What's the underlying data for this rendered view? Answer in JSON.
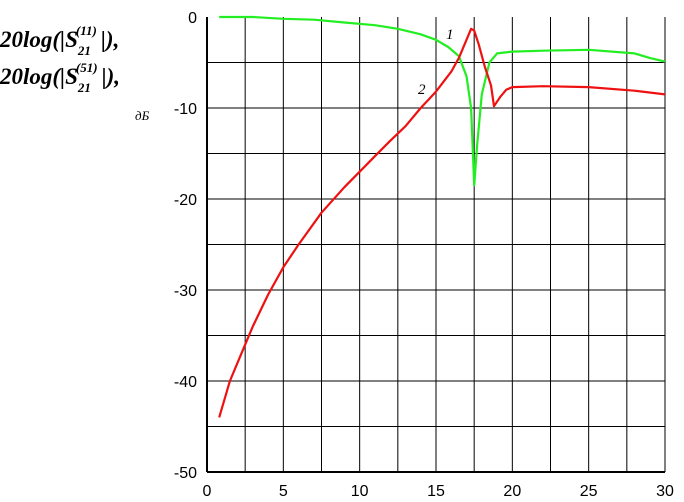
{
  "chart_data": {
    "type": "line",
    "title": "",
    "ylabel": {
      "line1_prefix": "20log(|S",
      "line1_sub": "21",
      "line1_sup": "(11)",
      "line1_suffix": "|),",
      "line2_prefix": "20log(|S",
      "line2_sub": "21",
      "line2_sup": "(51)",
      "line2_suffix": "|),",
      "unit": "дБ"
    },
    "xlabel": "",
    "xlim": [
      0,
      30
    ],
    "ylim": [
      -50,
      0
    ],
    "x_ticks": [
      0,
      5,
      10,
      15,
      20,
      25,
      30
    ],
    "y_ticks": [
      0,
      -10,
      -20,
      -30,
      -40,
      -50
    ],
    "x_grid_step": 2.5,
    "y_grid_step": 5,
    "grid": true,
    "series": [
      {
        "name": "1",
        "color": "#22ee22",
        "x": [
          0.8,
          3,
          5,
          7,
          9,
          11,
          12.5,
          14,
          15,
          15.8,
          16.5,
          17,
          17.3,
          17.5,
          17.7,
          18.0,
          18.5,
          19,
          20,
          22,
          25,
          28,
          29,
          30
        ],
        "y": [
          0,
          0,
          -0.2,
          -0.3,
          -0.6,
          -0.9,
          -1.3,
          -1.9,
          -2.5,
          -3.3,
          -4.3,
          -6.5,
          -10,
          -18.5,
          -14,
          -8.5,
          -5,
          -4,
          -3.8,
          -3.7,
          -3.6,
          -4.0,
          -4.5,
          -4.9
        ]
      },
      {
        "name": "2",
        "color": "#ee1111",
        "x": [
          0.8,
          1.5,
          2,
          3,
          4,
          5,
          6,
          7.5,
          9,
          10,
          11,
          12,
          13,
          14,
          15,
          16,
          16.5,
          17.0,
          17.3,
          17.5,
          17.8,
          18.2,
          18.6,
          18.8,
          19.2,
          19.6,
          20,
          22,
          25,
          28,
          30
        ],
        "y": [
          -44,
          -40,
          -38,
          -34,
          -30.5,
          -27.5,
          -25,
          -21.5,
          -18.7,
          -17,
          -15.3,
          -13.6,
          -12,
          -10,
          -8.2,
          -6,
          -4.5,
          -2.5,
          -1.3,
          -1.5,
          -3,
          -5.5,
          -7.5,
          -9.8,
          -8.8,
          -8,
          -7.7,
          -7.6,
          -7.7,
          -8.1,
          -8.5
        ]
      }
    ]
  }
}
